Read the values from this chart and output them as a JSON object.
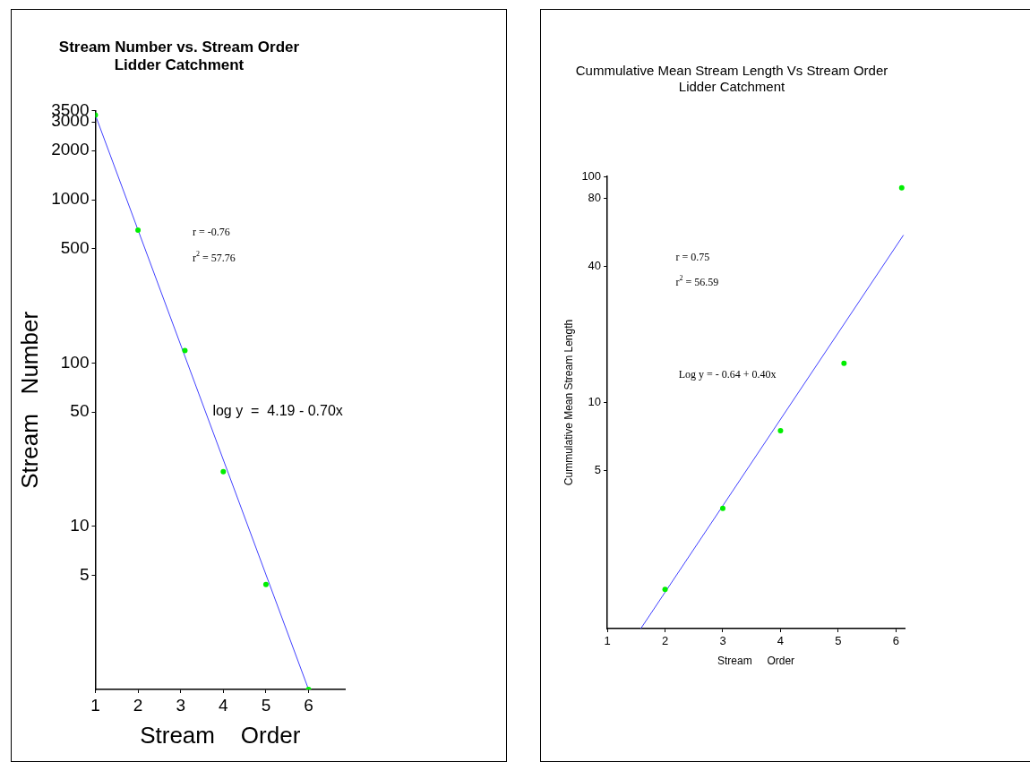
{
  "chart_data": [
    {
      "type": "scatter",
      "title": "Stream Number vs. Stream Order",
      "subtitle": "Lidder Catchment",
      "xlabel": "Stream    Order",
      "ylabel": "Stream   Number",
      "x": [
        1,
        2,
        3.1,
        4,
        5,
        6
      ],
      "xlim": [
        1,
        6.85
      ],
      "xticks": [
        1,
        2,
        3,
        4,
        5,
        6
      ],
      "ylim": [
        1,
        3500
      ],
      "yticks": [
        5,
        10,
        50,
        100,
        500,
        1000,
        2000,
        3000,
        3500
      ],
      "log": "y",
      "grid": false,
      "legend": false,
      "marker": "circle",
      "series": [
        {
          "color": "#00ee00",
          "values": [
            3300,
            650,
            119,
            21.6,
            4.4,
            1
          ]
        },
        {
          "type": "line",
          "color": "#4040ff",
          "x": [
            1,
            6
          ],
          "values": [
            3300,
            1
          ],
          "marker": "none"
        }
      ],
      "annotations": [
        "r = -0.76",
        "r$^{2}$ = 57.76",
        "log y  =  4.19 - 0.70x"
      ]
    },
    {
      "type": "scatter",
      "title": "Cummulative Mean Stream Length Vs Stream Order",
      "subtitle": "Lidder Catchment",
      "xlabel": "Stream     Order",
      "ylabel": "Cummulative Mean Stream Length",
      "x": [
        2,
        3,
        4,
        5.1,
        6.1
      ],
      "xlim": [
        1,
        6.15
      ],
      "xticks": [
        1,
        2,
        3,
        4,
        5,
        6
      ],
      "ylim": [
        1,
        100
      ],
      "yticks": [
        5,
        10,
        40,
        80,
        100
      ],
      "log": "y",
      "grid": false,
      "legend": false,
      "marker": "circle",
      "series": [
        {
          "color": "#00ee00",
          "values": [
            1.49,
            3.4,
            7.5,
            14.9,
            89
          ]
        },
        {
          "type": "line",
          "color": "#4040ff",
          "x": [
            1.58,
            6.13
          ],
          "values": [
            1,
            55
          ],
          "marker": "none"
        }
      ],
      "annotations": [
        "r = 0.75",
        "r$^{2}$ = 56.59",
        "Log y = - 0.64 + 0.40x"
      ]
    }
  ]
}
